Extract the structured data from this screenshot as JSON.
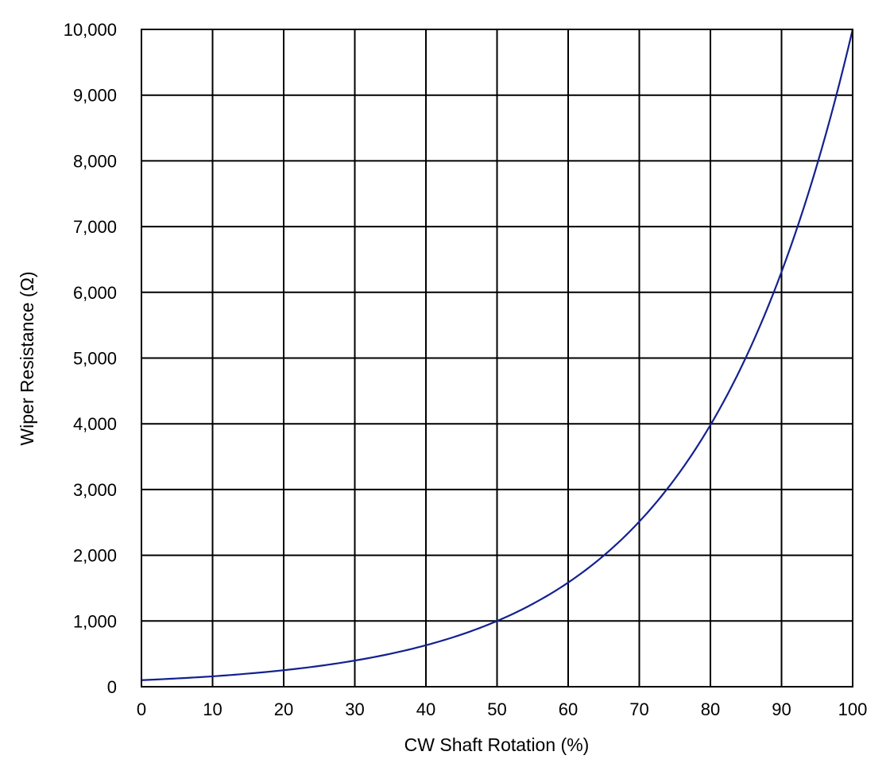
{
  "chart_data": {
    "type": "line",
    "title": "",
    "xlabel": "CW Shaft Rotation (%)",
    "ylabel": "Wiper Resistance (Ω)",
    "xlim": [
      0,
      100
    ],
    "ylim": [
      0,
      10000
    ],
    "x_ticks": [
      0,
      10,
      20,
      30,
      40,
      50,
      60,
      70,
      80,
      90,
      100
    ],
    "x_tick_labels": [
      "0",
      "10",
      "20",
      "30",
      "40",
      "50",
      "60",
      "70",
      "80",
      "90",
      "100"
    ],
    "y_ticks": [
      0,
      1000,
      2000,
      3000,
      4000,
      5000,
      6000,
      7000,
      8000,
      9000,
      10000
    ],
    "y_tick_labels": [
      "0",
      "1,000",
      "2,000",
      "3,000",
      "4,000",
      "5,000",
      "6,000",
      "7,000",
      "8,000",
      "9,000",
      "10,000"
    ],
    "grid": true,
    "legend": "none",
    "series": [
      {
        "color": "#13218f",
        "x": [
          0,
          5,
          10,
          15,
          20,
          25,
          30,
          35,
          40,
          45,
          50,
          55,
          60,
          65,
          70,
          75,
          80,
          85,
          90,
          95,
          100
        ],
        "y": [
          100,
          126,
          158,
          200,
          251,
          316,
          398,
          501,
          631,
          794,
          1000,
          1259,
          1585,
          1995,
          2512,
          3162,
          3981,
          5012,
          6310,
          7943,
          10000
        ]
      }
    ]
  }
}
